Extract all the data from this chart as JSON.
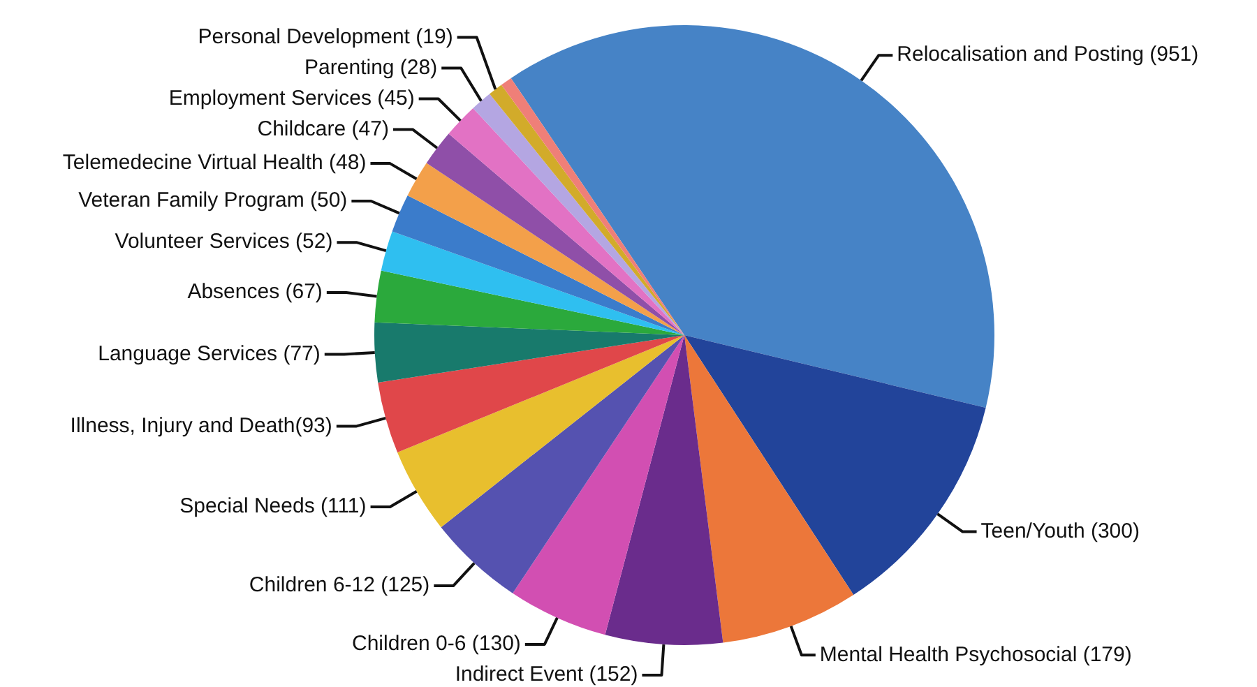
{
  "chart_data": {
    "type": "pie",
    "categories": [
      "Relocalisation and Posting (951)",
      "Teen/Youth (300)",
      "Mental Health Psychosocial (179)",
      "Indirect Event (152)",
      "Children 0-6 (130)",
      "Children 6-12 (125)",
      "Special Needs (111)",
      "Illness, Injury and Death(93)",
      "Language Services (77)",
      "Absences (67)",
      "Volunteer Services (52)",
      "Veteran Family Program (50)",
      "Telemedecine Virtual Health (48)",
      "Childcare (47)",
      "Employment Services (45)",
      "Parenting (28)",
      "Personal Development (19)",
      null
    ],
    "values": [
      951,
      300,
      179,
      152,
      130,
      125,
      111,
      93,
      77,
      67,
      52,
      50,
      48,
      47,
      45,
      28,
      19,
      15
    ],
    "colors": [
      "#4683c6",
      "#22449a",
      "#ec773a",
      "#6a2c8c",
      "#d24fb2",
      "#5552b0",
      "#e8bf2e",
      "#e0474a",
      "#187a6c",
      "#2ba93c",
      "#2fbff0",
      "#3b7ccb",
      "#f3a04a",
      "#8f4fa8",
      "#e272c4",
      "#b4a6e2",
      "#d2ab2a",
      "#ef7f78"
    ],
    "legend": false
  }
}
